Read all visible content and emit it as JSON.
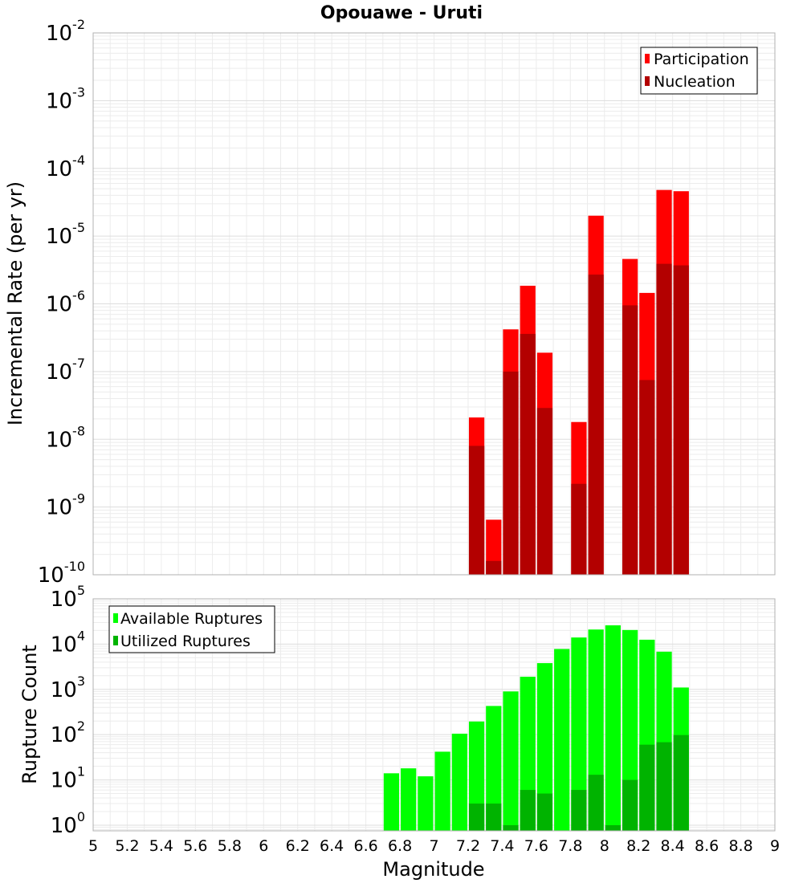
{
  "chart_data": [
    {
      "type": "bar",
      "title": "Opouawe - Uruti",
      "xlabel": "",
      "ylabel": "Incremental Rate (per yr)",
      "yscale": "log",
      "ylim": [
        1e-10,
        0.01
      ],
      "xlim": [
        5,
        9
      ],
      "grid": true,
      "legend_position": "top-right",
      "y_ticks": [
        {
          "base": "10",
          "exp": "-10"
        },
        {
          "base": "10",
          "exp": "-9"
        },
        {
          "base": "10",
          "exp": "-8"
        },
        {
          "base": "10",
          "exp": "-7"
        },
        {
          "base": "10",
          "exp": "-6"
        },
        {
          "base": "10",
          "exp": "-5"
        },
        {
          "base": "10",
          "exp": "-4"
        },
        {
          "base": "10",
          "exp": "-3"
        },
        {
          "base": "10",
          "exp": "-2"
        }
      ],
      "x": [
        7.25,
        7.35,
        7.45,
        7.55,
        7.65,
        7.85,
        7.95,
        8.15,
        8.25,
        8.35,
        8.45
      ],
      "series": [
        {
          "name": "Participation",
          "color": "#ff0000",
          "values": [
            2.1e-08,
            6.5e-10,
            4.2e-07,
            1.85e-06,
            1.9e-07,
            1.8e-08,
            2e-05,
            4.6e-06,
            1.45e-06,
            4.8e-05,
            4.6e-05
          ]
        },
        {
          "name": "Nucleation",
          "color": "#b30000",
          "values": [
            8e-09,
            1.6e-10,
            1e-07,
            3.6e-07,
            2.9e-08,
            2.2e-09,
            2.7e-06,
            9.5e-07,
            7.5e-08,
            3.9e-06,
            3.7e-06
          ]
        }
      ]
    },
    {
      "type": "bar",
      "xlabel": "Magnitude",
      "ylabel": "Rupture Count",
      "yscale": "log",
      "ylim": [
        0.75,
        100000
      ],
      "xlim": [
        5,
        9
      ],
      "grid": true,
      "legend_position": "top-left",
      "y_ticks": [
        {
          "base": "10",
          "exp": "0"
        },
        {
          "base": "10",
          "exp": "1"
        },
        {
          "base": "10",
          "exp": "2"
        },
        {
          "base": "10",
          "exp": "3"
        },
        {
          "base": "10",
          "exp": "4"
        },
        {
          "base": "10",
          "exp": "5"
        }
      ],
      "x_ticks": [
        "5",
        "5.2",
        "5.4",
        "5.6",
        "5.8",
        "6",
        "6.2",
        "6.4",
        "6.6",
        "6.8",
        "7",
        "7.2",
        "7.4",
        "7.6",
        "7.8",
        "8",
        "8.2",
        "8.4",
        "8.6",
        "8.8",
        "9"
      ],
      "x": [
        6.75,
        6.85,
        6.95,
        7.05,
        7.15,
        7.25,
        7.35,
        7.45,
        7.55,
        7.65,
        7.75,
        7.85,
        7.95,
        8.05,
        8.15,
        8.25,
        8.35,
        8.45
      ],
      "series": [
        {
          "name": "Available Ruptures",
          "color": "#00ff00",
          "values": [
            14,
            18,
            12,
            42,
            105,
            195,
            430,
            900,
            1900,
            3800,
            7800,
            14000,
            21000,
            26000,
            20500,
            12500,
            6800,
            1100
          ]
        },
        {
          "name": "Utilized Ruptures",
          "color": "#00b300",
          "values": [
            0,
            0,
            0,
            0,
            0,
            3,
            3,
            1,
            6,
            5,
            0,
            6,
            13,
            1,
            10,
            60,
            68,
            98
          ]
        }
      ]
    }
  ]
}
